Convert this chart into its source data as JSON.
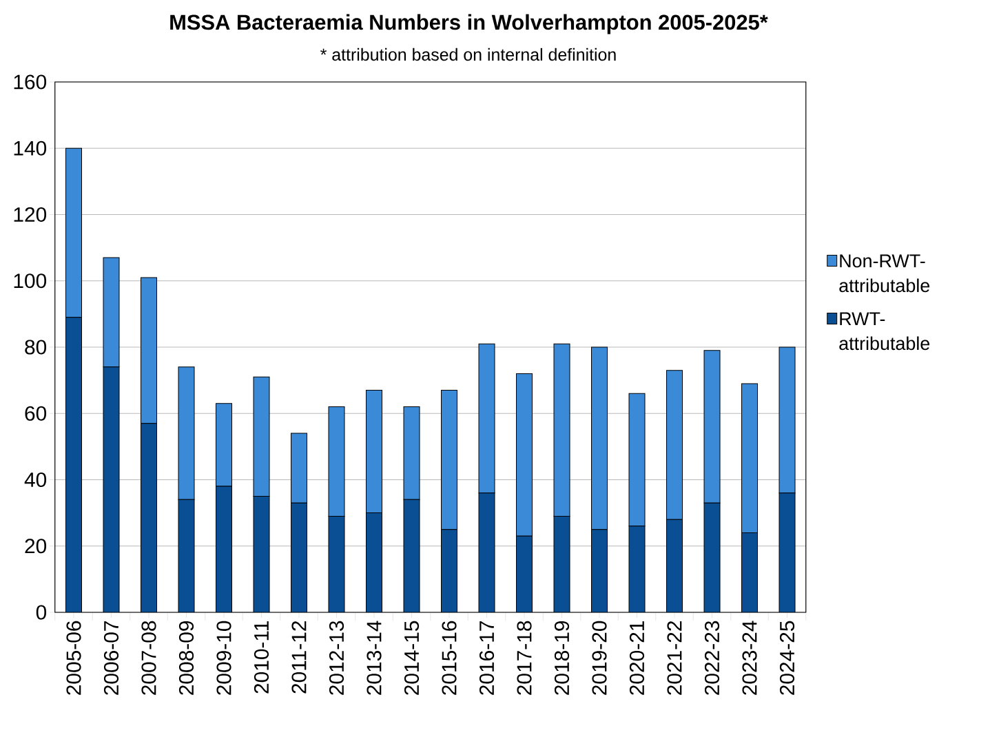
{
  "chart_data": {
    "type": "bar",
    "title": "MSSA Bacteraemia Numbers in Wolverhampton 2005-2025*",
    "subtitle": "* attribution based on internal definition",
    "categories": [
      "2005-06",
      "2006-07",
      "2007-08",
      "2008-09",
      "2009-10",
      "2010-11",
      "2011-12",
      "2012-13",
      "2013-14",
      "2014-15",
      "2015-16",
      "2016-17",
      "2017-18",
      "2018-19",
      "2019-20",
      "2020-21",
      "2021-22",
      "2022-23",
      "2023-24",
      "2024-25"
    ],
    "stacked": true,
    "series": [
      {
        "name": "RWT-attributable",
        "color": "#0a4f94",
        "values": [
          89,
          74,
          57,
          34,
          38,
          35,
          33,
          29,
          30,
          34,
          25,
          36,
          23,
          29,
          25,
          26,
          28,
          33,
          24,
          36
        ]
      },
      {
        "name": "Non-RWT-attributable",
        "color": "#3a8ad8",
        "values": [
          51,
          33,
          44,
          40,
          25,
          36,
          21,
          33,
          37,
          28,
          42,
          45,
          49,
          52,
          55,
          40,
          45,
          46,
          45,
          44
        ]
      }
    ],
    "ylim": [
      0,
      160
    ],
    "yticks": [
      0,
      20,
      40,
      60,
      80,
      100,
      120,
      140,
      160
    ],
    "grid": "y",
    "legend": "right"
  }
}
